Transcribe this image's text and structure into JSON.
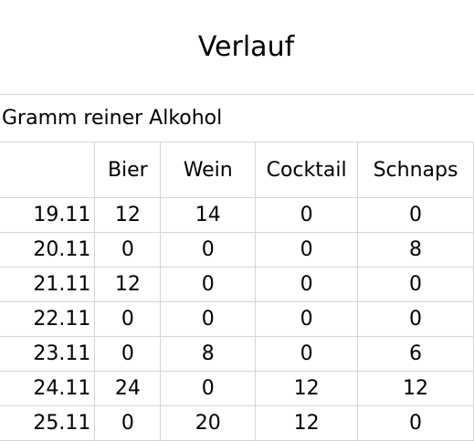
{
  "sheet": {
    "title": "Verlauf",
    "subtitle": "Gramm reiner Alkohol",
    "columns": [
      "",
      "Bier",
      "Wein",
      "Cocktail",
      "Schnaps"
    ],
    "rows": [
      {
        "date": "19.11",
        "bier": "12",
        "wein": "14",
        "cocktail": "0",
        "schnaps": "0"
      },
      {
        "date": "20.11",
        "bier": "0",
        "wein": "0",
        "cocktail": "0",
        "schnaps": "8"
      },
      {
        "date": "21.11",
        "bier": "12",
        "wein": "0",
        "cocktail": "0",
        "schnaps": "0"
      },
      {
        "date": "22.11",
        "bier": "0",
        "wein": "0",
        "cocktail": "0",
        "schnaps": "0"
      },
      {
        "date": "23.11",
        "bier": "0",
        "wein": "8",
        "cocktail": "0",
        "schnaps": "6"
      },
      {
        "date": "24.11",
        "bier": "24",
        "wein": "0",
        "cocktail": "12",
        "schnaps": "12"
      },
      {
        "date": "25.11",
        "bier": "0",
        "wein": "20",
        "cocktail": "12",
        "schnaps": "0"
      }
    ]
  },
  "colors": {
    "gridline": "#d4d4d4",
    "text": "#000000",
    "background": "#ffffff"
  }
}
